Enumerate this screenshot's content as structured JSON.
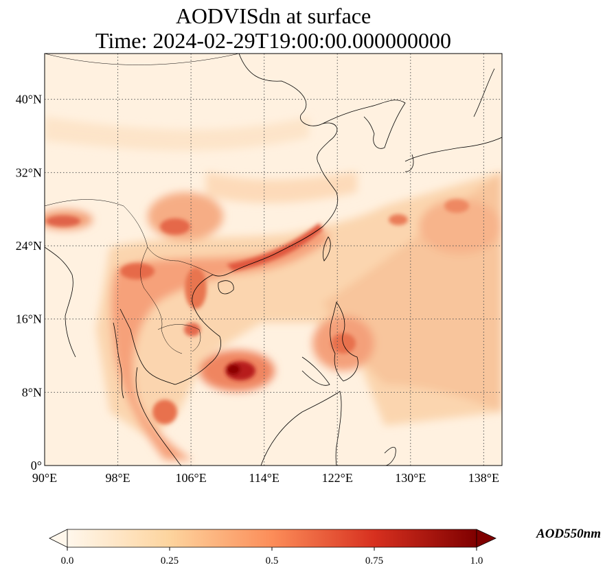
{
  "title": {
    "line1": "AODVISdn at surface",
    "line2": "Time: 2024-02-29T19:00:00.000000000"
  },
  "map": {
    "projection": "PlateCarree",
    "lon_range": [
      90,
      140
    ],
    "lat_range": [
      0,
      45
    ],
    "gridlines": "dotted",
    "lon_ticks": [
      {
        "value": 90,
        "label": "90°E"
      },
      {
        "value": 98,
        "label": "98°E"
      },
      {
        "value": 106,
        "label": "106°E"
      },
      {
        "value": 114,
        "label": "114°E"
      },
      {
        "value": 122,
        "label": "122°E"
      },
      {
        "value": 130,
        "label": "130°E"
      },
      {
        "value": 138,
        "label": "138°E"
      }
    ],
    "lat_ticks": [
      {
        "value": 0,
        "label": "0°"
      },
      {
        "value": 8,
        "label": "8°N"
      },
      {
        "value": 16,
        "label": "16°N"
      },
      {
        "value": 24,
        "label": "24°N"
      },
      {
        "value": 32,
        "label": "32°N"
      },
      {
        "value": 40,
        "label": "40°N"
      }
    ]
  },
  "colorbar": {
    "label": "AOD550nm",
    "colormap": "OrRd",
    "range": [
      0.0,
      1.0
    ],
    "extend": "both",
    "ticks": [
      {
        "value": 0.0,
        "label": "0.0"
      },
      {
        "value": 0.25,
        "label": "0.25"
      },
      {
        "value": 0.5,
        "label": "0.5"
      },
      {
        "value": 0.75,
        "label": "0.75"
      },
      {
        "value": 1.0,
        "label": "1.0"
      }
    ]
  },
  "colors": {
    "background_low": "#fff4e6",
    "mid": "#f7b27a",
    "high": "#d7301f",
    "max": "#7f0000",
    "coast": "#000000",
    "grid": "#555555"
  }
}
